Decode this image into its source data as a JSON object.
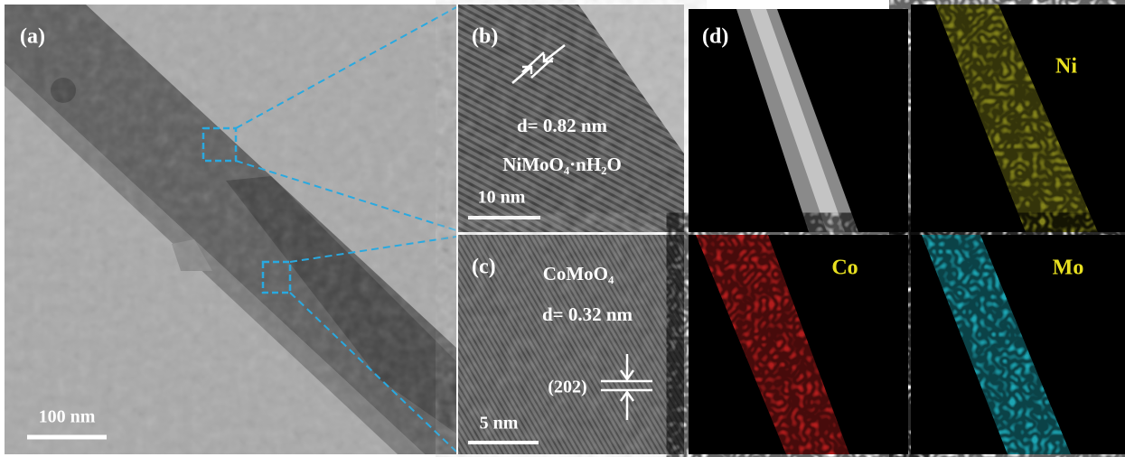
{
  "panels": {
    "a": {
      "label": "(a)",
      "scale": "100 nm"
    },
    "b": {
      "label": "(b)",
      "spacing": "d= 0.82 nm",
      "phase": "NiMoO₄·nH₂O",
      "scale": "10 nm"
    },
    "c": {
      "label": "(c)",
      "phase": "CoMoO₄",
      "spacing": "d= 0.32 nm",
      "plane": "(202)",
      "scale": "5 nm"
    },
    "d": {
      "label": "(d)",
      "elements": [
        "Ni",
        "Co",
        "Mo"
      ]
    }
  }
}
